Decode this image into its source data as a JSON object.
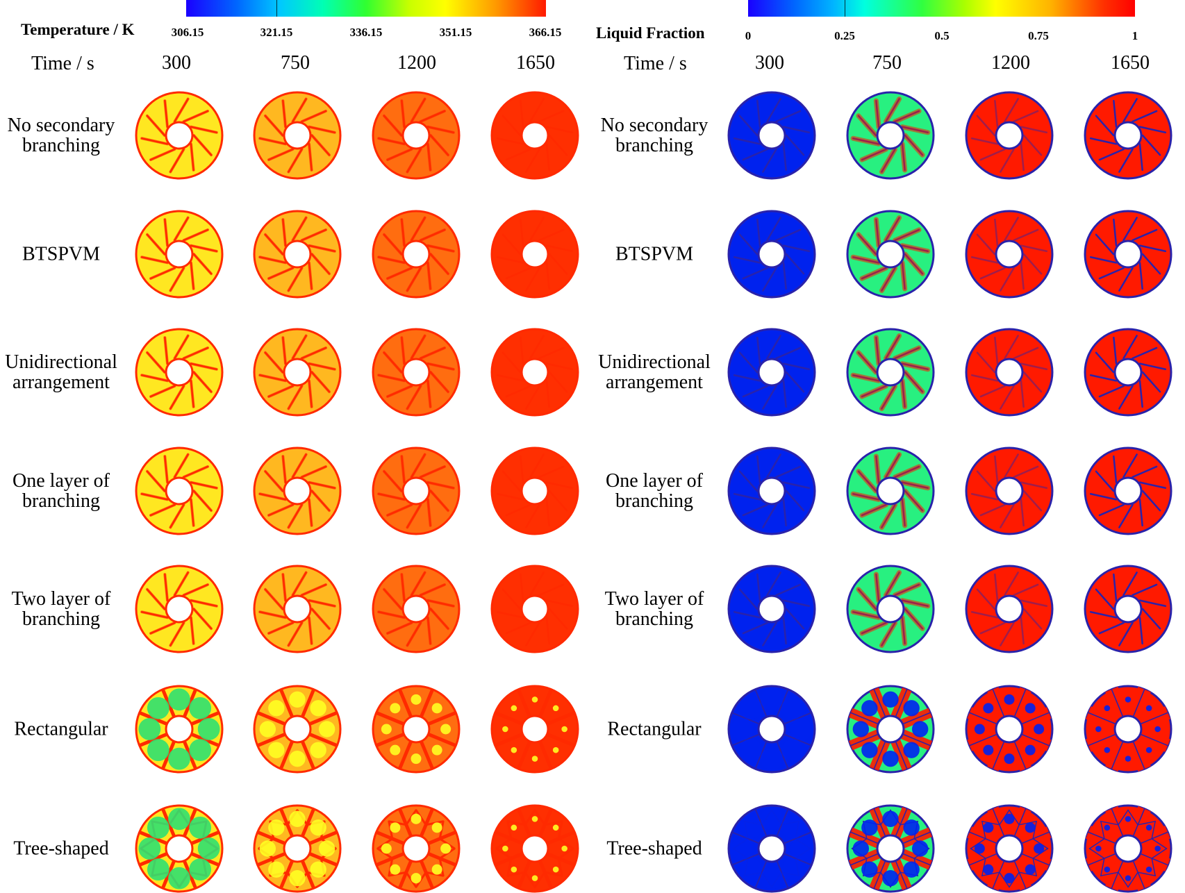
{
  "colorbars": {
    "temperature": {
      "title": "Temperature / K",
      "ticks": [
        "306.15",
        "321.15",
        "336.15",
        "351.15",
        "366.15"
      ]
    },
    "liquid": {
      "title": "Liquid Fraction",
      "ticks": [
        "0",
        "0.25",
        "0.5",
        "0.75",
        "1"
      ]
    }
  },
  "time_header": {
    "title": "Time / s",
    "values": [
      "300",
      "750",
      "1200",
      "1650"
    ]
  },
  "rows": [
    {
      "label": [
        "No secondary",
        "branching"
      ],
      "type": "fin"
    },
    {
      "label": [
        "BTSPVM"
      ],
      "type": "fin"
    },
    {
      "label": [
        "Unidirectional",
        "arrangement"
      ],
      "type": "fin"
    },
    {
      "label": [
        "One layer of",
        "branching"
      ],
      "type": "fin"
    },
    {
      "label": [
        "Two layer of",
        "branching"
      ],
      "type": "fin"
    },
    {
      "label": [
        "Rectangular"
      ],
      "type": "rect"
    },
    {
      "label": [
        "Tree-shaped"
      ],
      "type": "tree"
    }
  ],
  "melt_progress": [
    0.15,
    0.45,
    0.75,
    0.98
  ],
  "colors": {
    "solid_temp": "#ffff22",
    "mid_temp": "#ffb020",
    "hot_temp": "#ff2a00",
    "solid_liq": "#0022ee",
    "mush_liq": "#20e0c0",
    "green_liq": "#30ff40",
    "hot_liq": "#ff1a00",
    "rim_temp": "#ff2a00",
    "rim_liq": "#2a22aa"
  }
}
